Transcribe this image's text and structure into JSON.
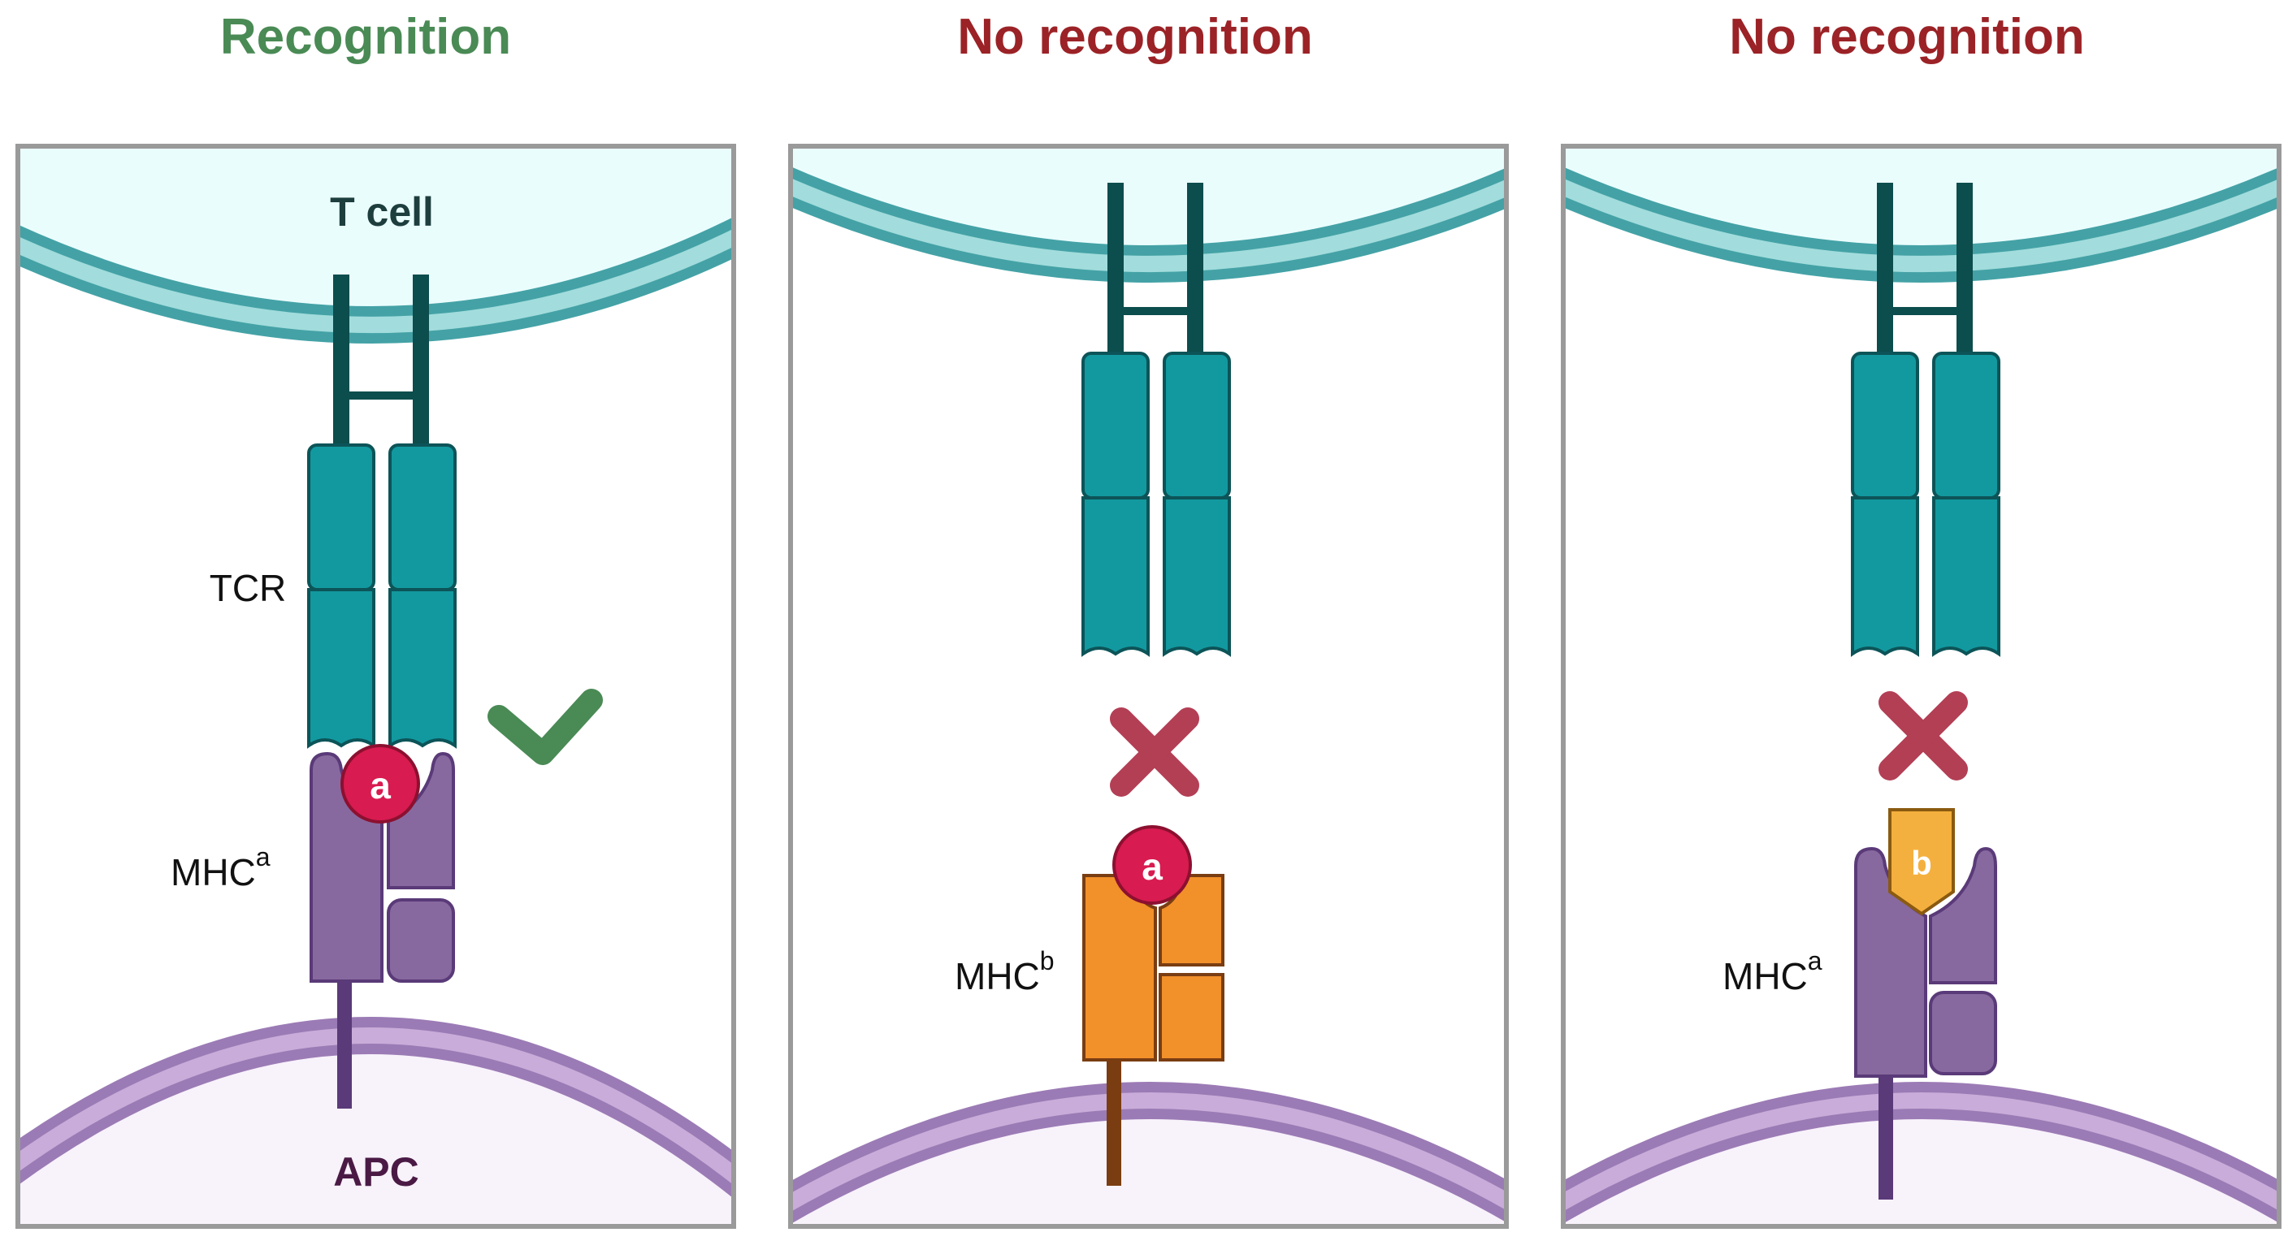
{
  "panels": [
    {
      "heading": "Recognition",
      "heading_color": "#4a8a55",
      "t_cell_label": "T cell",
      "tcr_label": "TCR",
      "mhc_label": "MHC",
      "mhc_superscript": "a",
      "peptide_label": "a",
      "apc_label": "APC",
      "outcome_icon": "checkmark-icon"
    },
    {
      "heading": "No recognition",
      "heading_color": "#9b2226",
      "mhc_label": "MHC",
      "mhc_superscript": "b",
      "peptide_label": "a",
      "outcome_icon": "cross-icon"
    },
    {
      "heading": "No recognition",
      "heading_color": "#9b2226",
      "mhc_label": "MHC",
      "mhc_superscript": "a",
      "peptide_label": "b",
      "outcome_icon": "cross-icon"
    }
  ],
  "colors": {
    "t_cell_fill": "#eafdfd",
    "t_membrane_outer": "#44a2a6",
    "t_membrane_inner": "#a2dcdc",
    "tcr_fill": "#12999f",
    "tcr_stroke": "#0c5458",
    "tcr_stalk": "#0c4d4d",
    "apc_fill": "#f8f2fb",
    "apc_membrane_outer": "#9b7bb5",
    "apc_membrane_inner": "#c9acd9",
    "mhc_a_fill": "#87699f",
    "mhc_a_stroke": "#5a3a78",
    "mhc_b_fill": "#f2902a",
    "mhc_b_stroke": "#7a3d12",
    "peptide_a_fill": "#d81b50",
    "peptide_b_fill": "#f4b03e",
    "check": "#4a8a55",
    "cross": "#b33f55",
    "panel_border": "#9a9a9a"
  }
}
